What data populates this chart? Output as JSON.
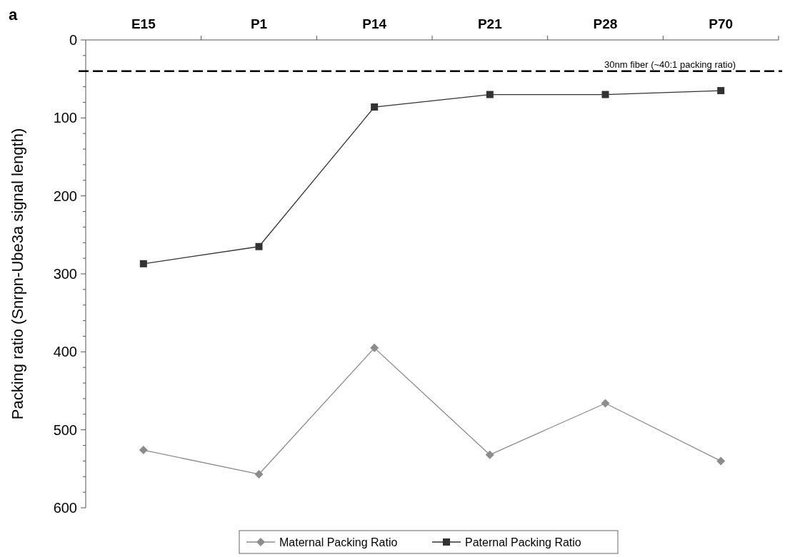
{
  "chart_data": {
    "type": "line",
    "ylabel": "Packing ratio (Snrpn-Ube3a signal length)",
    "annotations": [
      "a"
    ],
    "categories": [
      "E15",
      "P1",
      "P14",
      "P21",
      "P28",
      "P70"
    ],
    "series": [
      {
        "name": "Maternal Packing Ratio",
        "color": "#8c8c8c",
        "marker": "diamond",
        "values": [
          526,
          557,
          395,
          532,
          466,
          540
        ]
      },
      {
        "name": "Paternal Packing Ratio",
        "color": "#333333",
        "marker": "square",
        "values": [
          287,
          265,
          86,
          70,
          70,
          65
        ]
      }
    ],
    "ylim": [
      600,
      0
    ],
    "yticks": [
      0,
      {
        "value": 20,
        "label": null
      },
      {
        "value": 40,
        "label": null
      },
      {
        "value": 60,
        "label": null
      },
      {
        "value": 80,
        "label": null
      },
      100,
      {
        "value": 120,
        "label": null
      },
      {
        "value": 140,
        "label": null
      },
      {
        "value": 160,
        "label": null
      },
      {
        "value": 180,
        "label": null
      },
      200,
      {
        "value": 220,
        "label": null
      },
      {
        "value": 240,
        "label": null
      },
      {
        "value": 260,
        "label": null
      },
      {
        "value": 280,
        "label": null
      },
      300,
      {
        "value": 320,
        "label": null
      },
      {
        "value": 340,
        "label": null
      },
      {
        "value": 360,
        "label": null
      },
      {
        "value": 380,
        "label": null
      },
      400,
      {
        "value": 420,
        "label": null
      },
      {
        "value": 440,
        "label": null
      },
      {
        "value": 460,
        "label": null
      },
      {
        "value": 480,
        "label": null
      },
      500,
      {
        "value": 520,
        "label": null
      },
      {
        "value": 540,
        "label": null
      },
      {
        "value": 560,
        "label": null
      },
      {
        "value": 580,
        "label": null
      },
      600
    ],
    "ref_lines": [
      {
        "axis": "y",
        "value": 40,
        "label": "30nm fiber (~40:1 packing ratio)",
        "color": "#000000",
        "line_style": "dashed"
      }
    ],
    "grid": false,
    "legend": "bottom",
    "line_style": "solid"
  }
}
